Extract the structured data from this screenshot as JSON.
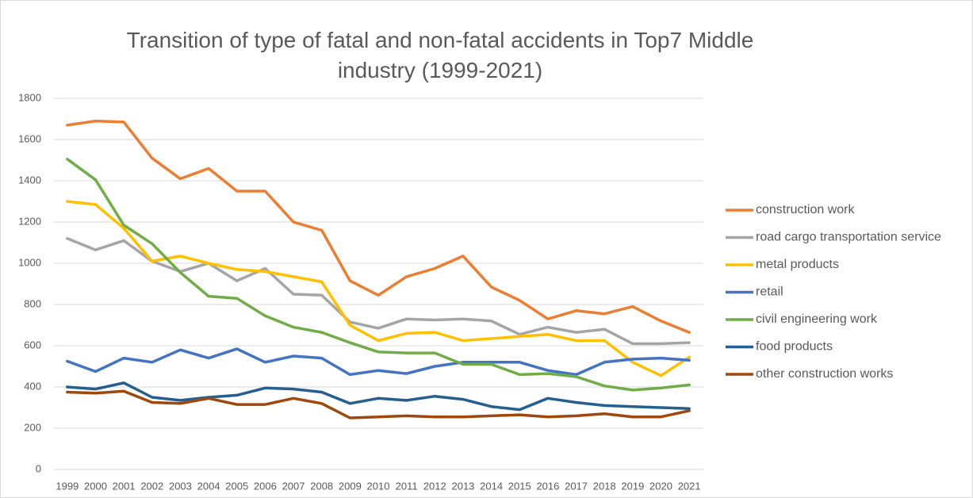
{
  "chart_data": {
    "type": "line",
    "title": "Transition of type of fatal and non-fatal accidents in Top7 Middle industry (1999-2021)",
    "categories": [
      "1999",
      "2000",
      "2001",
      "2002",
      "2003",
      "2004",
      "2005",
      "2006",
      "2007",
      "2008",
      "2009",
      "2010",
      "2011",
      "2012",
      "2013",
      "2014",
      "2015",
      "2016",
      "2017",
      "2018",
      "2019",
      "2020",
      "2021"
    ],
    "series": [
      {
        "name": "construction work",
        "color": "#ed7d31",
        "values": [
          1670,
          1690,
          1685,
          1510,
          1410,
          1460,
          1350,
          1350,
          1200,
          1160,
          915,
          845,
          935,
          975,
          1035,
          885,
          820,
          730,
          770,
          755,
          790,
          720,
          665
        ]
      },
      {
        "name": "road cargo transportation service",
        "color": "#a5a5a5",
        "values": [
          1120,
          1065,
          1110,
          1010,
          960,
          1000,
          915,
          975,
          850,
          845,
          715,
          685,
          730,
          725,
          730,
          720,
          655,
          690,
          665,
          680,
          610,
          610,
          615
        ]
      },
      {
        "name": "metal products",
        "color": "#ffc000",
        "values": [
          1300,
          1285,
          1170,
          1010,
          1035,
          1000,
          970,
          960,
          935,
          910,
          700,
          625,
          660,
          665,
          625,
          635,
          645,
          655,
          625,
          625,
          520,
          455,
          545
        ]
      },
      {
        "name": "retail",
        "color": "#4472c4",
        "values": [
          525,
          475,
          540,
          520,
          580,
          540,
          585,
          520,
          550,
          540,
          460,
          480,
          465,
          500,
          520,
          520,
          520,
          480,
          460,
          520,
          535,
          540,
          530
        ]
      },
      {
        "name": "civil engineering work",
        "color": "#70ad47",
        "values": [
          1505,
          1405,
          1185,
          1095,
          955,
          840,
          830,
          745,
          690,
          665,
          615,
          570,
          565,
          565,
          510,
          510,
          460,
          465,
          450,
          405,
          385,
          395,
          410
        ]
      },
      {
        "name": "food products",
        "color": "#255e91",
        "values": [
          400,
          390,
          420,
          350,
          335,
          350,
          360,
          395,
          390,
          375,
          320,
          345,
          335,
          355,
          340,
          305,
          290,
          345,
          325,
          310,
          305,
          300,
          295
        ]
      },
      {
        "name": "other construction works",
        "color": "#9e480e",
        "values": [
          375,
          370,
          380,
          325,
          320,
          345,
          315,
          315,
          345,
          320,
          250,
          255,
          260,
          255,
          255,
          260,
          265,
          255,
          260,
          270,
          255,
          255,
          285
        ]
      }
    ],
    "ylim": [
      0,
      1800
    ],
    "yticks": [
      0,
      200,
      400,
      600,
      800,
      1000,
      1200,
      1400,
      1600,
      1800
    ],
    "grid": true,
    "legend": "right"
  }
}
